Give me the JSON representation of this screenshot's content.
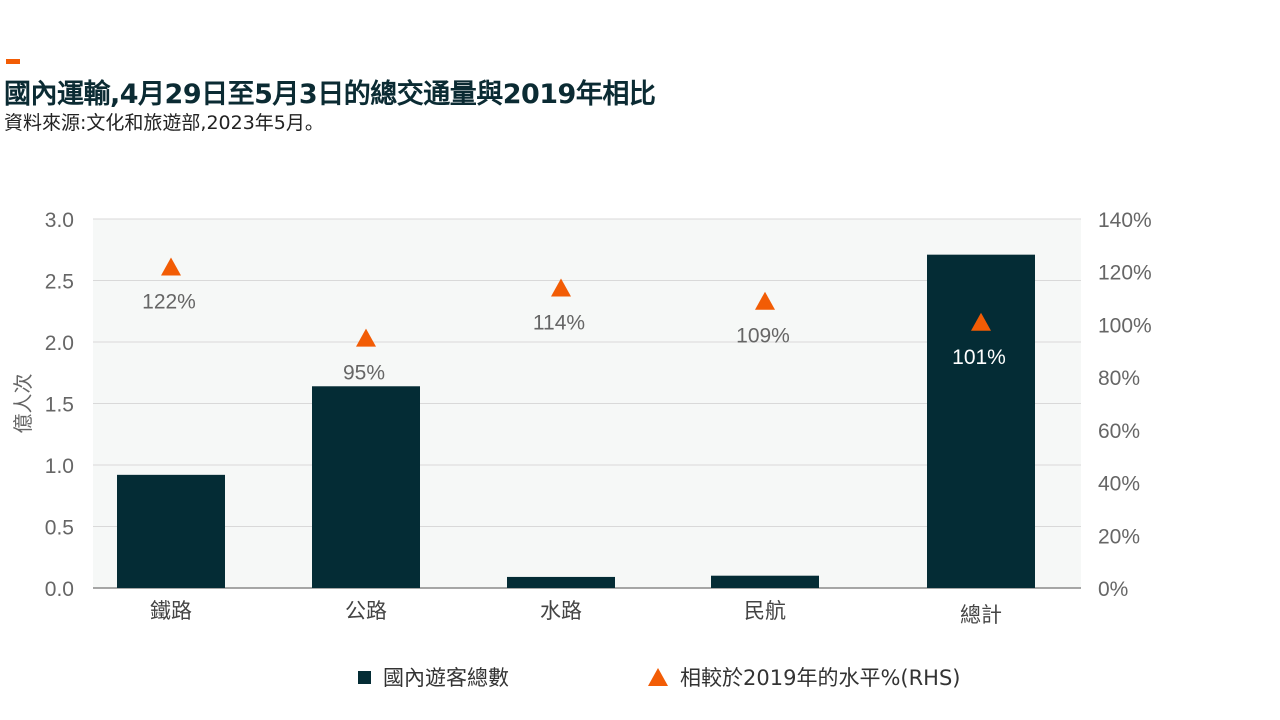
{
  "header": {
    "title": "國內運輸,4月29日至5月3日的總交通量與2019年相比",
    "subtitle": "資料來源:文化和旅遊部,2023年5月。"
  },
  "colors": {
    "bar": "#042c35",
    "marker": "#f25c05",
    "accent": "#f25c05",
    "plot_bg": "#f6f8f7",
    "grid": "#d9d9d9"
  },
  "chart_data": {
    "type": "bar",
    "categories": [
      "鐵路",
      "公路",
      "水路",
      "民航",
      "總計"
    ],
    "series": [
      {
        "name": "國內遊客總數",
        "type": "bar",
        "axis": "left",
        "values": [
          0.92,
          1.64,
          0.09,
          0.1,
          2.71
        ]
      },
      {
        "name": "相較於2019年的水平%(RHS)",
        "type": "scatter",
        "marker": "triangle",
        "axis": "right",
        "values": [
          122,
          95,
          114,
          109,
          101
        ]
      }
    ],
    "data_labels": [
      "122%",
      "95%",
      "114%",
      "109%",
      "101%"
    ],
    "ylabel": "億人次",
    "ylim": [
      0,
      3.0
    ],
    "yticks": [
      "0.0",
      "0.5",
      "1.0",
      "1.5",
      "2.0",
      "2.5",
      "3.0"
    ],
    "y2lim": [
      0,
      140
    ],
    "y2ticks": [
      "0%",
      "20%",
      "40%",
      "60%",
      "80%",
      "100%",
      "120%",
      "140%"
    ],
    "grid": true,
    "legend_position": "bottom"
  }
}
